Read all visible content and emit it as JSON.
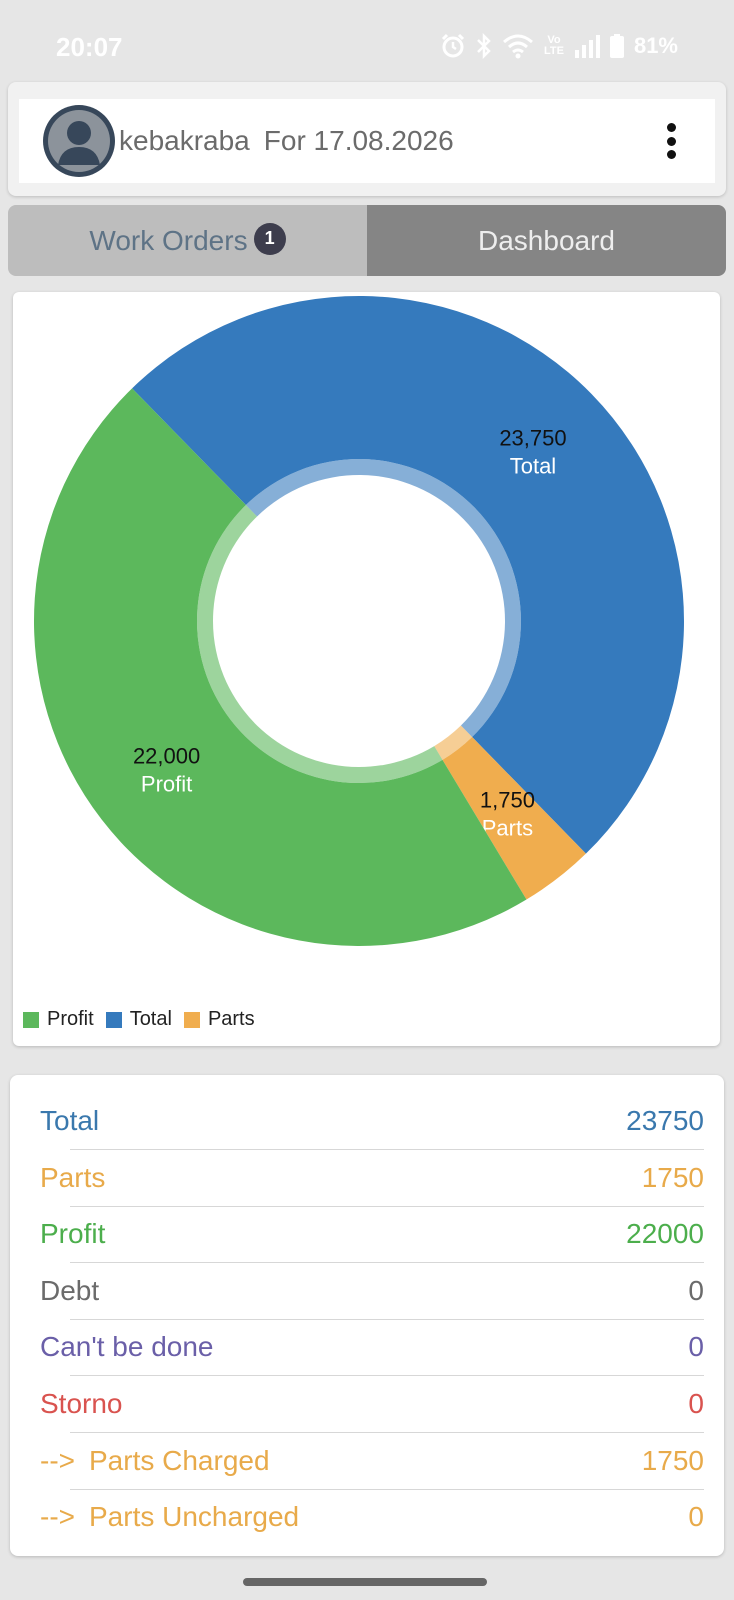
{
  "status_bar": {
    "time": "20:07",
    "volte_top": "Vo",
    "volte_bottom": "LTE",
    "battery": "81%"
  },
  "header": {
    "username": "kebakraba",
    "date_label": "For 17.08.2026"
  },
  "tabs": [
    {
      "label": "Work Orders",
      "badge": "1"
    },
    {
      "label": "Dashboard"
    }
  ],
  "chart_data": {
    "type": "pie",
    "series": [
      {
        "name": "Total",
        "value": 23750,
        "label": "23,750",
        "color": "#357abd"
      },
      {
        "name": "Parts",
        "value": 1750,
        "label": "1,750",
        "color": "#f0ad4e"
      },
      {
        "name": "Profit",
        "value": 22000,
        "label": "22,000",
        "color": "#5cb85c"
      }
    ],
    "legend": [
      "Profit",
      "Total",
      "Parts"
    ],
    "legend_placement": "bottom-left"
  },
  "stats": [
    {
      "label": "Total",
      "value": "23750",
      "color": "#3a78ad",
      "prefix": ""
    },
    {
      "label": "Parts",
      "value": "1750",
      "color": "#e8aa4a",
      "prefix": ""
    },
    {
      "label": "Profit",
      "value": "22000",
      "color": "#4cae4c",
      "prefix": ""
    },
    {
      "label": "Debt",
      "value": "0",
      "color": "#6b6b6b",
      "prefix": ""
    },
    {
      "label": "Can't be done",
      "value": "0",
      "color": "#6a5fa8",
      "prefix": ""
    },
    {
      "label": "Storno",
      "value": "0",
      "color": "#d9534f",
      "prefix": ""
    },
    {
      "label": "Parts Charged",
      "value": "1750",
      "color": "#e8aa4a",
      "prefix": "-->"
    },
    {
      "label": "Parts Uncharged",
      "value": "0",
      "color": "#e8aa4a",
      "prefix": "-->"
    }
  ]
}
